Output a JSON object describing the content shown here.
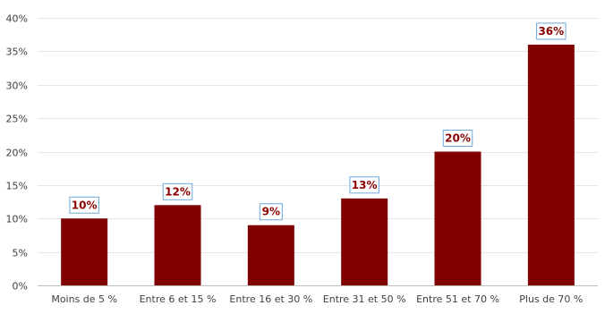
{
  "chart_data": {
    "type": "bar",
    "categories": [
      "Moins de 5 %",
      "Entre 6 et 15 %",
      "Entre 16 et 30 %",
      "Entre 31 et 50 %",
      "Entre 51 et 70 %",
      "Plus de 70 %"
    ],
    "values": [
      10,
      12,
      9,
      13,
      20,
      36
    ],
    "data_labels": [
      "10%",
      "12%",
      "9%",
      "13%",
      "20%",
      "36%"
    ],
    "y_ticks": [
      0,
      5,
      10,
      15,
      20,
      25,
      30,
      35,
      40
    ],
    "y_tick_labels": [
      "0%",
      "5%",
      "10%",
      "15%",
      "20%",
      "25%",
      "30%",
      "35%",
      "40%"
    ],
    "ylim": [
      0,
      40
    ],
    "grid": true,
    "legend": "none",
    "colors": {
      "bar": "#800000",
      "data_label_text": "#8b0000",
      "data_label_border": "#6fa8dc",
      "grid": "#e6e6e6"
    }
  }
}
